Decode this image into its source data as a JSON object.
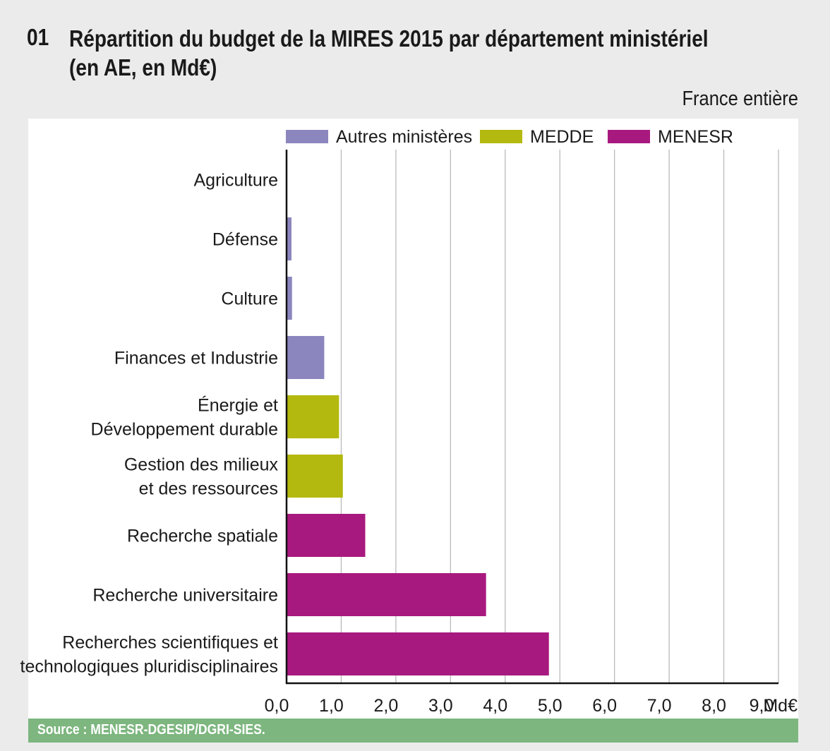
{
  "header": {
    "figure_number": "01",
    "title": "Répartition du budget de la MIRES 2015 par département ministériel (en AE, en Md€)",
    "title_line1": "Répartition du budget de la MIRES 2015 par département ministériel",
    "title_line2": "(en AE, en Md€)",
    "scope": "France entière"
  },
  "source": "Source : MENESR-DGESIP/DGRI-SIES.",
  "chart_data": {
    "type": "bar",
    "orientation": "horizontal",
    "title": "Répartition du budget de la MIRES 2015 par département ministériel (en AE, en Md€)",
    "xlabel": "Md€",
    "ylabel": "",
    "xlim": [
      0,
      9
    ],
    "x_ticks": [
      "0,0",
      "1,0",
      "2,0",
      "3,0",
      "4,0",
      "5,0",
      "6,0",
      "7,0",
      "8,0",
      "9,0"
    ],
    "x_unit_label": "Md€",
    "grid": "vertical",
    "legend_position": "top",
    "legend": [
      {
        "name": "Autres ministères",
        "color": "#8b86bd"
      },
      {
        "name": "MEDDE",
        "color": "#b3b90e"
      },
      {
        "name": "MENESR",
        "color": "#a8197f"
      }
    ],
    "categories": [
      {
        "label": [
          "Agriculture"
        ],
        "value": 0.01,
        "group": "Autres ministères"
      },
      {
        "label": [
          "Défense"
        ],
        "value": 0.09,
        "group": "Autres ministères"
      },
      {
        "label": [
          "Culture"
        ],
        "value": 0.1,
        "group": "Autres ministères"
      },
      {
        "label": [
          "Finances et Industrie"
        ],
        "value": 0.69,
        "group": "Autres ministères"
      },
      {
        "label": [
          "Énergie et",
          "Développement durable"
        ],
        "value": 0.96,
        "group": "MEDDE"
      },
      {
        "label": [
          "Gestion des milieux",
          "et des ressources"
        ],
        "value": 1.03,
        "group": "MEDDE"
      },
      {
        "label": [
          "Recherche spatiale"
        ],
        "value": 1.44,
        "group": "MENESR"
      },
      {
        "label": [
          "Recherche universitaire"
        ],
        "value": 3.65,
        "group": "MENESR"
      },
      {
        "label": [
          "Recherches scientifiques et",
          "technologiques pluridisciplinaires"
        ],
        "value": 4.8,
        "group": "MENESR"
      }
    ]
  }
}
